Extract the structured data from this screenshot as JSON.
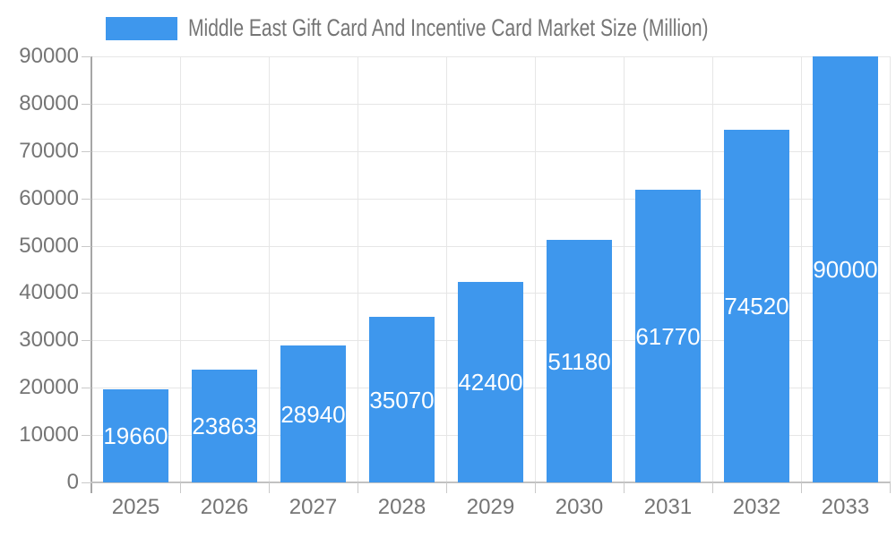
{
  "chart_data": {
    "type": "bar",
    "title": "Middle East Gift Card And Incentive Card Market Size (Million)",
    "legend": {
      "position": "top",
      "entries": [
        "Middle East Gift Card And Incentive Card Market Size (Million)"
      ]
    },
    "categories": [
      "2025",
      "2026",
      "2027",
      "2028",
      "2029",
      "2030",
      "2031",
      "2032",
      "2033"
    ],
    "values": [
      19660,
      23863,
      28940,
      35070,
      42400,
      51180,
      61770,
      74520,
      90000
    ],
    "xlabel": "",
    "ylabel": "",
    "ylim": [
      0,
      90000
    ],
    "ytick_step": 10000,
    "yticks": [
      0,
      10000,
      20000,
      30000,
      40000,
      50000,
      60000,
      70000,
      80000,
      90000
    ],
    "grid": {
      "horizontal": true,
      "vertical": true
    },
    "value_labels": {
      "position": "inside-center",
      "color": "#ffffff"
    },
    "colors": {
      "bar": "#3e97ed",
      "axis_text": "#757575",
      "title_text": "#757575",
      "gridline": "#e6e6e6",
      "y_axis_line": "#a6a6a6",
      "x_axis_line": "#c2c2c2",
      "tick": "#c9c9c9",
      "background": "#ffffff"
    }
  }
}
